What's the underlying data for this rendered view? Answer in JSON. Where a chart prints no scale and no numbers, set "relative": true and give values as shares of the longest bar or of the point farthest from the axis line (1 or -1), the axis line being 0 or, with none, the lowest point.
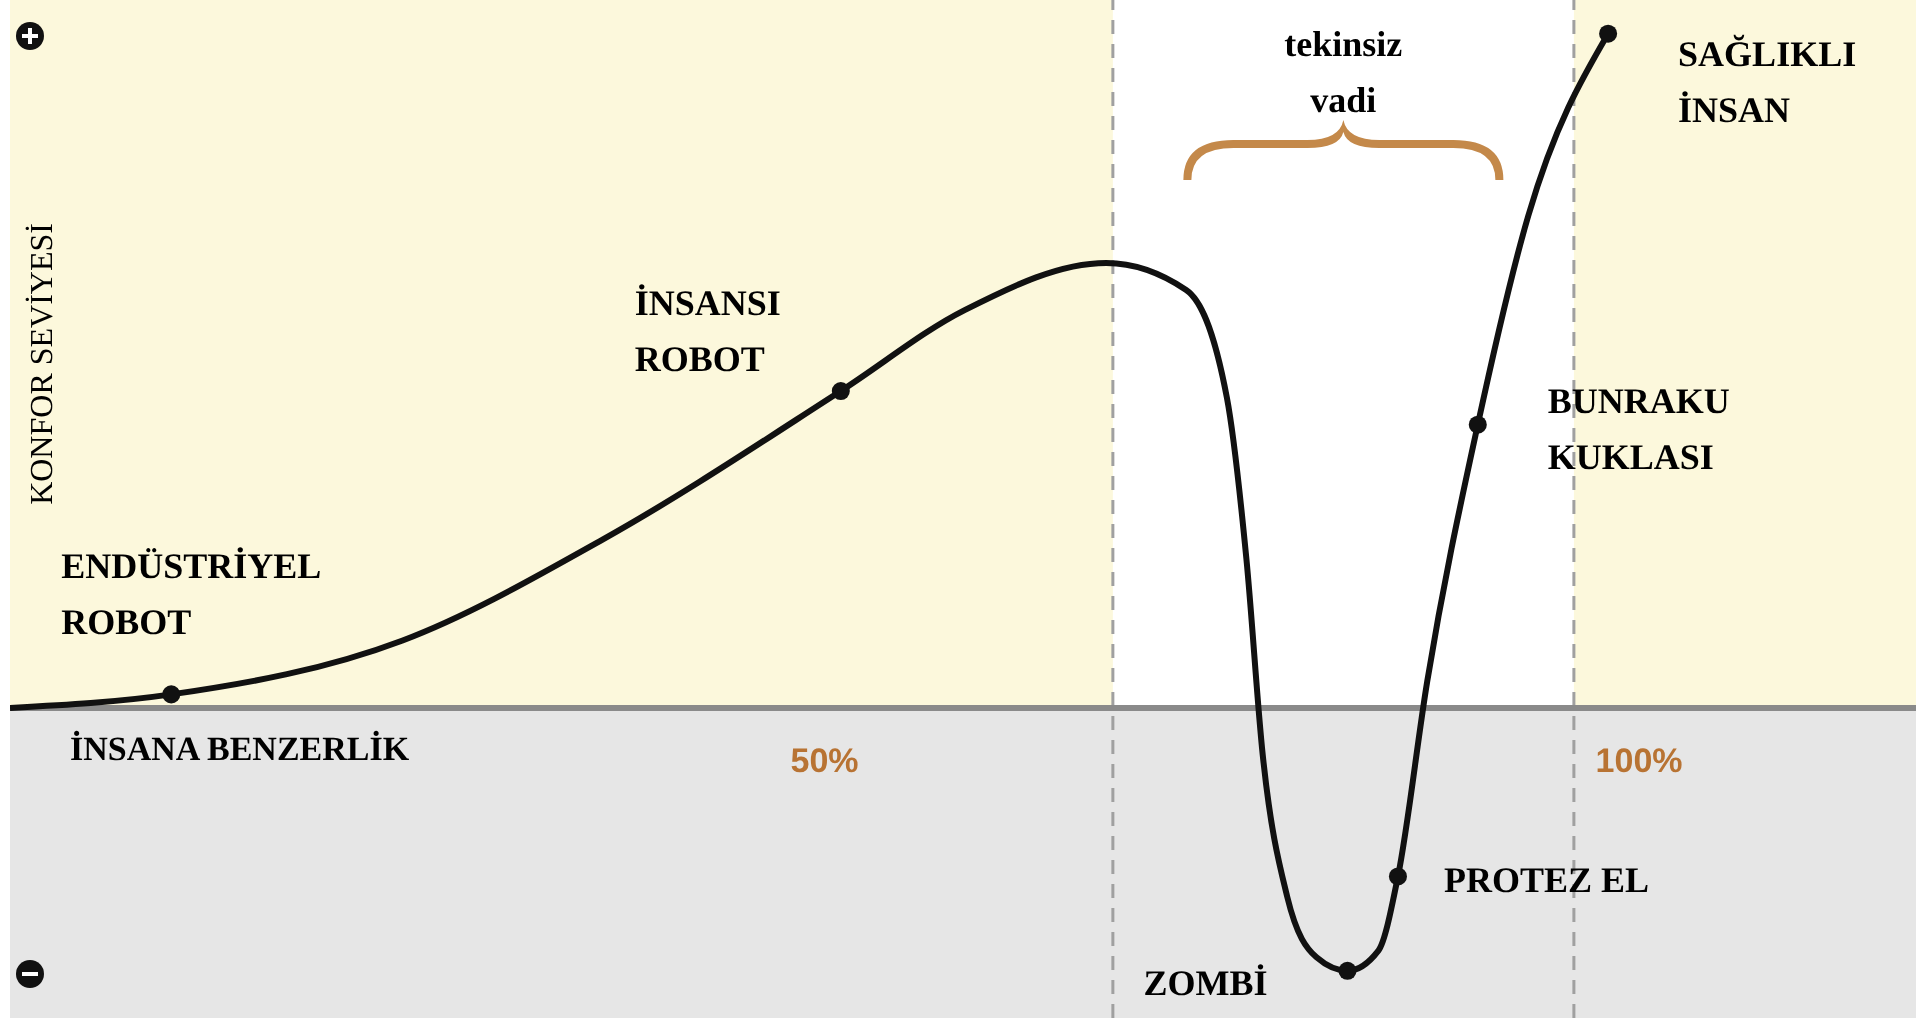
{
  "chart_data": {
    "type": "line",
    "relative": true,
    "ylabel": "KONFOR SEVİYESİ",
    "xlabel": "İNSANA BENZERLİK",
    "xlim": [
      0,
      117
    ],
    "xticks": [
      {
        "value": 50,
        "label": "50%"
      },
      {
        "value": 100,
        "label": "100%"
      }
    ],
    "series": [
      {
        "color": "#111111",
        "marker": "none",
        "line_style": "solid",
        "x": [
          0,
          9.9,
          24.1,
          36.4,
          51,
          58.6,
          67.3,
          72.2,
          74.7,
          75.9,
          76.9,
          78.4,
          80.2,
          82.1,
          84,
          85.2,
          87,
          90.1,
          93.2,
          98.1
        ],
        "values": [
          0,
          0.02,
          0.1,
          0.25,
          0.47,
          0.59,
          0.66,
          0.62,
          0.46,
          0.22,
          -0.07,
          -0.28,
          -0.37,
          -0.39,
          -0.36,
          -0.25,
          0.04,
          0.42,
          0.73,
          1
        ]
      },
      {
        "type": "scatter",
        "color": "#111111",
        "marker": "circle",
        "x": [
          9.9,
          51,
          82.1,
          85.2,
          90.1,
          98.1
        ],
        "values": [
          0.02,
          0.47,
          -0.39,
          -0.25,
          0.42,
          1
        ]
      }
    ],
    "bands": [
      {
        "axis": "y",
        "from": 0,
        "to": 1.05,
        "color": "#fcf8dc"
      },
      {
        "axis": "y",
        "from": -0.46,
        "to": 0,
        "color": "#e6e6e6"
      },
      {
        "axis": "x",
        "from": 67.7,
        "to": 96,
        "color": "#ffffff"
      }
    ],
    "ref_lines": [
      {
        "axis": "x",
        "value": 67.7,
        "color": "#a0a0a0",
        "line_style": "dashed"
      },
      {
        "axis": "x",
        "value": 96,
        "color": "#a0a0a0",
        "line_style": "dashed"
      }
    ],
    "annotations": [
      {
        "text": "ENDÜSTRİYEL ROBOT",
        "x": 9.9,
        "y": 0.02
      },
      {
        "text": "İNSANSI ROBOT",
        "x": 51,
        "y": 0.47
      },
      {
        "text": "ZOMBİ",
        "x": 82.1,
        "y": -0.39
      },
      {
        "text": "PROTEZ EL",
        "x": 85.2,
        "y": -0.25
      },
      {
        "text": "BUNRAKU KUKLASI",
        "x": 90.1,
        "y": 0.42
      },
      {
        "text": "SAĞLIKLI İNSAN",
        "x": 98.1,
        "y": 1
      },
      "tekinsiz vadi"
    ]
  }
}
